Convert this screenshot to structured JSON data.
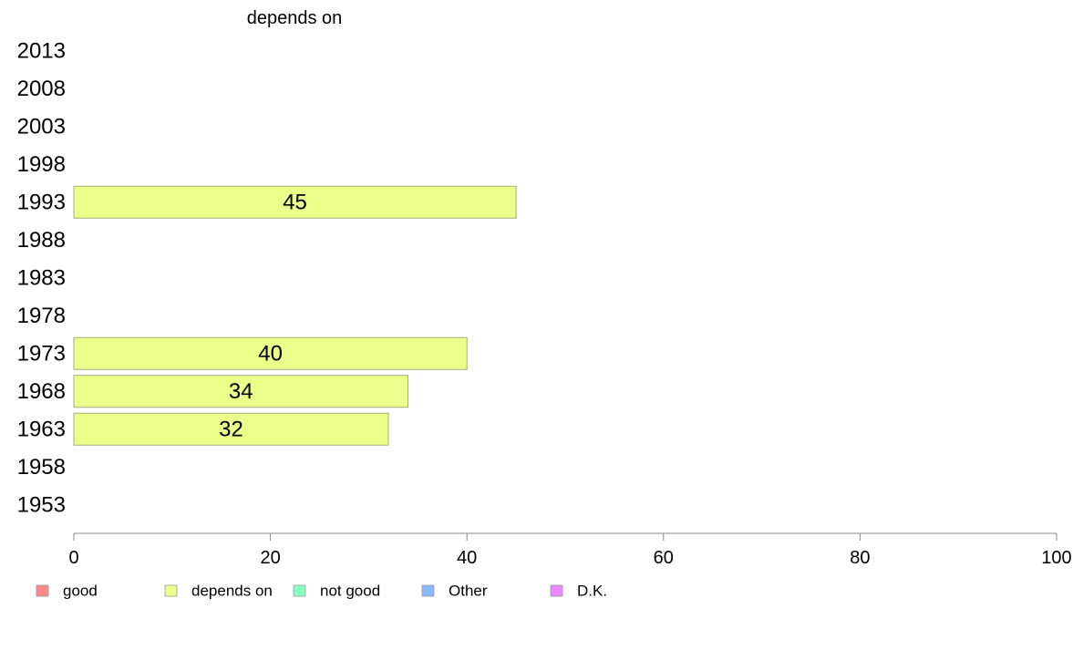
{
  "chart_data": {
    "type": "bar",
    "orientation": "horizontal",
    "title": "depends on",
    "categories": [
      "2013",
      "2008",
      "2003",
      "1998",
      "1993",
      "1988",
      "1983",
      "1978",
      "1973",
      "1968",
      "1963",
      "1958",
      "1953"
    ],
    "series": [
      {
        "name": "depends on",
        "color": "#ebff8a",
        "values": [
          null,
          null,
          null,
          null,
          45,
          null,
          null,
          null,
          40,
          34,
          32,
          null,
          null
        ]
      }
    ],
    "xlim": [
      0,
      100
    ],
    "xticks": [
      "0",
      "20",
      "40",
      "60",
      "80",
      "100"
    ],
    "grid": false,
    "legend_position": "bottom",
    "legend": [
      {
        "label": "good",
        "color": "#ff8a8a"
      },
      {
        "label": "depends on",
        "color": "#ebff8a"
      },
      {
        "label": "not good",
        "color": "#8affc4"
      },
      {
        "label": "Other",
        "color": "#8ab8ff"
      },
      {
        "label": "D.K.",
        "color": "#eb8aff"
      }
    ]
  }
}
